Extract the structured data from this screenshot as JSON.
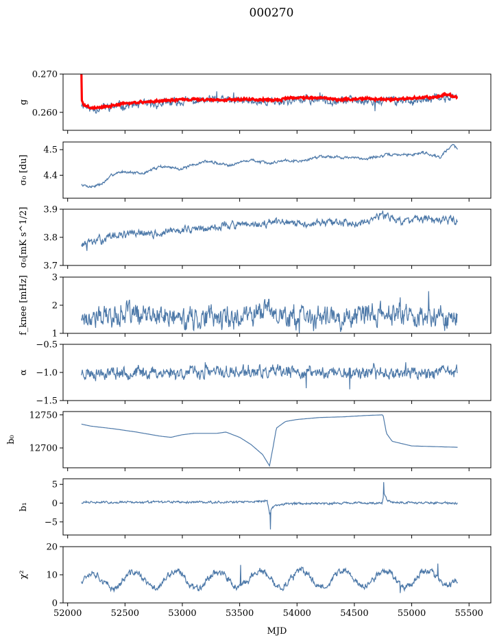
{
  "chart_data": {
    "type": "line",
    "title": "000270",
    "xlabel": "MJD",
    "xlim": [
      51960,
      55690
    ],
    "xticks": [
      52000,
      52500,
      53000,
      53500,
      54000,
      54500,
      55000,
      55500
    ],
    "x_range": [
      52120,
      55400
    ],
    "grid": false,
    "series_color": "#4c78a8",
    "fit_color": "#ff0000",
    "panels": [
      {
        "name": "g",
        "ylabel": "g",
        "ylim": [
          0.2553,
          0.27
        ],
        "yticks": [
          0.26,
          0.27
        ],
        "ytick_labels": [
          "0.260",
          "0.270"
        ],
        "line": {
          "base": [
            [
              52120,
              0.2625
            ],
            [
              52200,
              0.2608
            ],
            [
              52300,
              0.2612
            ],
            [
              52500,
              0.2618
            ],
            [
              52800,
              0.2622
            ],
            [
              53000,
              0.2628
            ],
            [
              53300,
              0.2632
            ],
            [
              53500,
              0.263
            ],
            [
              53700,
              0.2628
            ],
            [
              53900,
              0.263
            ],
            [
              54100,
              0.2633
            ],
            [
              54300,
              0.2632
            ],
            [
              54500,
              0.2631
            ],
            [
              54700,
              0.263
            ],
            [
              54900,
              0.2632
            ],
            [
              55100,
              0.263
            ],
            [
              55300,
              0.264
            ],
            [
              55400,
              0.2638
            ]
          ],
          "noise": 0.0008,
          "seed": 11,
          "spikes": [
            [
              53300,
              0.2655
            ],
            [
              53450,
              0.2652
            ],
            [
              54200,
              0.2652
            ],
            [
              54680,
              0.2603
            ],
            [
              55200,
              0.265
            ]
          ]
        },
        "fit": {
          "points": [
            [
              52120,
              0.27
            ],
            [
              52124,
              0.263
            ],
            [
              52140,
              0.262
            ],
            [
              52200,
              0.2612
            ],
            [
              52300,
              0.2613
            ],
            [
              52500,
              0.2623
            ],
            [
              52700,
              0.2628
            ],
            [
              53000,
              0.2634
            ],
            [
              53300,
              0.2633
            ],
            [
              53600,
              0.2634
            ],
            [
              53800,
              0.2632
            ],
            [
              54000,
              0.2639
            ],
            [
              54200,
              0.2638
            ],
            [
              54400,
              0.2633
            ],
            [
              54600,
              0.2636
            ],
            [
              54800,
              0.2634
            ],
            [
              55000,
              0.2637
            ],
            [
              55200,
              0.264
            ],
            [
              55300,
              0.2648
            ],
            [
              55400,
              0.2638
            ]
          ],
          "noise": 0.0002,
          "seed": 3
        }
      },
      {
        "name": "sigma0-du",
        "ylabel": "σ₀ [du]",
        "ylim": [
          4.31,
          4.53
        ],
        "yticks": [
          4.4,
          4.5
        ],
        "ytick_labels": [
          "4.4",
          "4.5"
        ],
        "line": {
          "base": [
            [
              52120,
              4.363
            ],
            [
              52200,
              4.355
            ],
            [
              52300,
              4.366
            ],
            [
              52400,
              4.405
            ],
            [
              52500,
              4.415
            ],
            [
              52650,
              4.405
            ],
            [
              52800,
              4.435
            ],
            [
              53000,
              4.425
            ],
            [
              53200,
              4.455
            ],
            [
              53400,
              4.44
            ],
            [
              53600,
              4.46
            ],
            [
              53750,
              4.445
            ],
            [
              53900,
              4.46
            ],
            [
              54050,
              4.455
            ],
            [
              54200,
              4.475
            ],
            [
              54400,
              4.47
            ],
            [
              54600,
              4.465
            ],
            [
              54800,
              4.48
            ],
            [
              55000,
              4.48
            ],
            [
              55100,
              4.49
            ],
            [
              55250,
              4.47
            ],
            [
              55350,
              4.52
            ],
            [
              55400,
              4.505
            ]
          ],
          "noise": 0.004,
          "seed": 7,
          "spikes": []
        }
      },
      {
        "name": "sigma0-mk",
        "ylabel": "σ₀[mK s^1/2]",
        "ylim": [
          3.7,
          3.9
        ],
        "yticks": [
          3.7,
          3.8,
          3.9
        ],
        "ytick_labels": [
          "3.7",
          "3.8",
          "3.9"
        ],
        "line": {
          "base": [
            [
              52120,
              3.775
            ],
            [
              52200,
              3.78
            ],
            [
              52400,
              3.805
            ],
            [
              52600,
              3.815
            ],
            [
              52800,
              3.81
            ],
            [
              53000,
              3.83
            ],
            [
              53200,
              3.83
            ],
            [
              53400,
              3.845
            ],
            [
              53600,
              3.84
            ],
            [
              53800,
              3.855
            ],
            [
              54000,
              3.845
            ],
            [
              54200,
              3.855
            ],
            [
              54400,
              3.85
            ],
            [
              54600,
              3.86
            ],
            [
              54750,
              3.88
            ],
            [
              54900,
              3.86
            ],
            [
              55100,
              3.86
            ],
            [
              55300,
              3.86
            ],
            [
              55400,
              3.86
            ]
          ],
          "noise": 0.01,
          "seed": 13,
          "spikes": [
            [
              52170,
              3.752
            ],
            [
              54750,
              3.895
            ]
          ]
        }
      },
      {
        "name": "fknee",
        "ylabel": "f_knee [mHz]",
        "ylim": [
          1,
          3
        ],
        "yticks": [
          1,
          2,
          3
        ],
        "ytick_labels": [
          "1",
          "2",
          "3"
        ],
        "line": {
          "base": [
            [
              52120,
              1.6
            ],
            [
              52400,
              1.6
            ],
            [
              52500,
              1.75
            ],
            [
              52600,
              1.6
            ],
            [
              52800,
              1.6
            ],
            [
              53000,
              1.5
            ],
            [
              53200,
              1.6
            ],
            [
              53400,
              1.55
            ],
            [
              53600,
              1.7
            ],
            [
              53750,
              1.9
            ],
            [
              53900,
              1.6
            ],
            [
              54100,
              1.55
            ],
            [
              54300,
              1.55
            ],
            [
              54500,
              1.6
            ],
            [
              54700,
              1.65
            ],
            [
              54900,
              1.7
            ],
            [
              55100,
              1.6
            ],
            [
              55400,
              1.6
            ]
          ],
          "noise": 0.28,
          "seed": 17,
          "spikes": [
            [
              55150,
              2.5
            ],
            [
              54900,
              2.28
            ],
            [
              54020,
              1.0
            ],
            [
              54380,
              1.05
            ]
          ]
        }
      },
      {
        "name": "alpha",
        "ylabel": "α",
        "ylim": [
          -1.5,
          -0.5
        ],
        "yticks": [
          -1.5,
          -1.0,
          -0.5
        ],
        "ytick_labels": [
          "−1.5",
          "−1.0",
          "−0.5"
        ],
        "line": {
          "base": [
            [
              52120,
              -1.0
            ],
            [
              55400,
              -1.0
            ]
          ],
          "noise": 0.08,
          "seed": 23,
          "spikes": [
            [
              54080,
              -1.28
            ],
            [
              54460,
              -1.3
            ],
            [
              53200,
              -0.82
            ],
            [
              54950,
              -0.82
            ]
          ]
        }
      },
      {
        "name": "b0",
        "ylabel": "b₀",
        "ylim": [
          12670,
          12755
        ],
        "yticks": [
          12700,
          12750
        ],
        "ytick_labels": [
          "12700",
          "12750"
        ],
        "line": {
          "base": [
            [
              52120,
              12736
            ],
            [
              52200,
              12733
            ],
            [
              52400,
              12729
            ],
            [
              52600,
              12724
            ],
            [
              52800,
              12718
            ],
            [
              52900,
              12716
            ],
            [
              53000,
              12720
            ],
            [
              53100,
              12722
            ],
            [
              53300,
              12722
            ],
            [
              53380,
              12724
            ],
            [
              53500,
              12716
            ],
            [
              53600,
              12705
            ],
            [
              53700,
              12690
            ],
            [
              53760,
              12673
            ],
            [
              53790,
              12700
            ],
            [
              53820,
              12730
            ],
            [
              53900,
              12740
            ],
            [
              54000,
              12743
            ],
            [
              54200,
              12746
            ],
            [
              54400,
              12747
            ],
            [
              54600,
              12749
            ],
            [
              54750,
              12750
            ],
            [
              54780,
              12722
            ],
            [
              54830,
              12710
            ],
            [
              55000,
              12703
            ],
            [
              55200,
              12702
            ],
            [
              55400,
              12701
            ]
          ],
          "noise": 0.0,
          "seed": 29,
          "spikes": []
        }
      },
      {
        "name": "b1",
        "ylabel": "b₁",
        "ylim": [
          -8.5,
          6.5
        ],
        "yticks": [
          -5,
          0,
          5
        ],
        "ytick_labels": [
          "−5",
          "0",
          "5"
        ],
        "line": {
          "base": [
            [
              52120,
              0.2
            ],
            [
              53600,
              0.3
            ],
            [
              53720,
              0.7
            ],
            [
              53740,
              0.5
            ],
            [
              53760,
              -3.0
            ],
            [
              53780,
              -1.2
            ],
            [
              53820,
              -0.6
            ],
            [
              53900,
              -0.2
            ],
            [
              54100,
              0.0
            ],
            [
              54740,
              0.0
            ],
            [
              54760,
              2.5
            ],
            [
              54790,
              0.7
            ],
            [
              54850,
              0.2
            ],
            [
              55400,
              0.0
            ]
          ],
          "noise": 0.22,
          "seed": 31,
          "spikes": [
            [
              53770,
              -7.0
            ],
            [
              54757,
              5.6
            ]
          ]
        }
      },
      {
        "name": "chi2",
        "ylabel": "χ²",
        "ylim": [
          0,
          20
        ],
        "yticks": [
          0,
          10,
          20
        ],
        "ytick_labels": [
          "0",
          "10",
          "20"
        ],
        "line": {
          "base": [
            [
              52120,
              6.5
            ],
            [
              55400,
              9.5
            ]
          ],
          "noise": 0.9,
          "seed": 37,
          "spikes": [
            [
              53510,
              13.5
            ],
            [
              55230,
              14.0
            ],
            [
              54900,
              3.5
            ]
          ],
          "wave": {
            "amp": 2.8,
            "period": 365,
            "mean": 8.0
          }
        }
      }
    ]
  }
}
